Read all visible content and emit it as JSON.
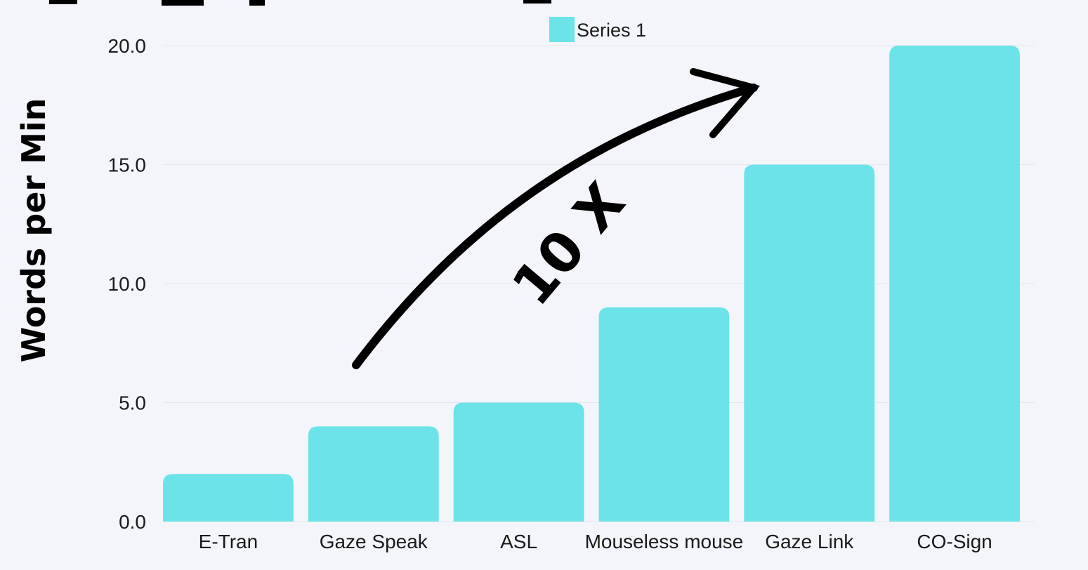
{
  "chart_data": {
    "type": "bar",
    "categories": [
      "E-Tran",
      "Gaze Speak",
      "ASL",
      "Mouseless mouse",
      "Gaze Link",
      "CO-Sign"
    ],
    "series": [
      {
        "name": "Series 1",
        "values": [
          2,
          4,
          5,
          9,
          15,
          20
        ]
      }
    ],
    "ylabel": "Words per Min",
    "ylim": [
      0,
      20
    ],
    "yticks": [
      "0.0",
      "5.0",
      "10.0",
      "15.0",
      "20.0"
    ],
    "grid": true,
    "legend_placement": "top-center",
    "annotation": "10 X",
    "colors": {
      "bar": "#6be3e8",
      "background": "#f3f5fa",
      "grid": "#e3e6ec",
      "annotation": "#000000"
    }
  }
}
